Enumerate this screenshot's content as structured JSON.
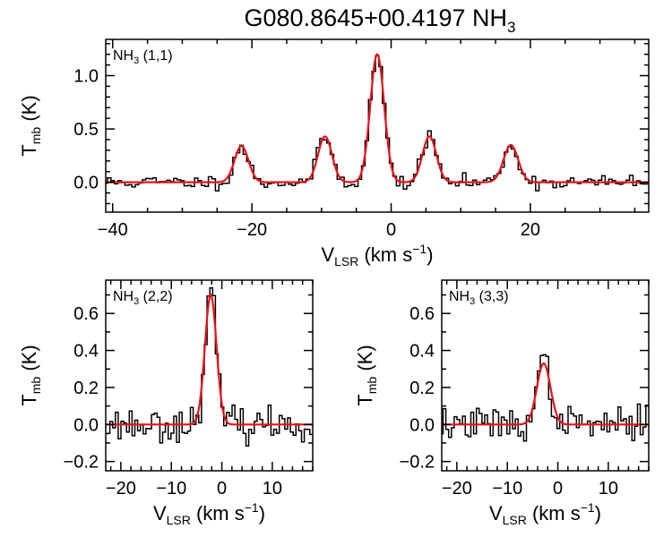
{
  "figure": {
    "title_main": "G080.8645+00.4197 NH",
    "title_sub": "3",
    "fit_color": "#e8121b",
    "obs_color": "#000000"
  },
  "chart_data": [
    {
      "type": "line",
      "panel_label_main": "NH",
      "panel_label_sub": "3",
      "panel_label_rest": " (1,1)",
      "xlabel_main": "V",
      "xlabel_sub": "LSR",
      "xlabel_rest": " (km s",
      "xlabel_sup": "−1",
      "xlabel_close": ")",
      "ylabel_main": "T",
      "ylabel_sub": "mb",
      "ylabel_rest": " (K)",
      "xlim": [
        -41,
        37
      ],
      "ylim": [
        -0.28,
        1.34
      ],
      "xticks": [
        -40,
        -20,
        0,
        20
      ],
      "xtick_labels": [
        "−40",
        "−20",
        "0",
        "20"
      ],
      "yticks": [
        0.0,
        0.5,
        1.0
      ],
      "ytick_labels": [
        "0.0",
        "0.5",
        "1.0"
      ],
      "noise": 0.025,
      "series": [
        {
          "model": "gaussians",
          "components": [
            {
              "center": -21.5,
              "amplitude": 0.34,
              "sigma": 1.0
            },
            {
              "center": -9.5,
              "amplitude": 0.43,
              "sigma": 1.0
            },
            {
              "center": -2.0,
              "amplitude": 1.2,
              "sigma": 1.0
            },
            {
              "center": 5.5,
              "amplitude": 0.43,
              "sigma": 1.0
            },
            {
              "center": 17.2,
              "amplitude": 0.35,
              "sigma": 1.05
            }
          ]
        }
      ]
    },
    {
      "type": "line",
      "panel_label_main": "NH",
      "panel_label_sub": "3",
      "panel_label_rest": " (2,2)",
      "xlabel_main": "V",
      "xlabel_sub": "LSR",
      "xlabel_rest": " (km s",
      "xlabel_sup": "−1",
      "xlabel_close": ")",
      "ylabel_main": "T",
      "ylabel_sub": "mb",
      "ylabel_rest": " (K)",
      "xlim": [
        -23,
        18
      ],
      "ylim": [
        -0.25,
        0.78
      ],
      "xticks": [
        -20,
        -10,
        0,
        10
      ],
      "xtick_labels": [
        "−20",
        "−10",
        "0",
        "10"
      ],
      "yticks": [
        -0.2,
        0.0,
        0.2,
        0.4,
        0.6
      ],
      "ytick_labels": [
        "−0.2",
        "0.0",
        "0.2",
        "0.4",
        "0.6"
      ],
      "noise": 0.035,
      "series": [
        {
          "model": "gaussians",
          "components": [
            {
              "center": -2.2,
              "amplitude": 0.7,
              "sigma": 1.15
            }
          ]
        }
      ]
    },
    {
      "type": "line",
      "panel_label_main": "NH",
      "panel_label_sub": "3",
      "panel_label_rest": " (3,3)",
      "xlabel_main": "V",
      "xlabel_sub": "LSR",
      "xlabel_rest": " (km s",
      "xlabel_sup": "−1",
      "xlabel_close": ")",
      "ylabel_main": "T",
      "ylabel_sub": "mb",
      "ylabel_rest": " (K)",
      "xlim": [
        -23,
        18
      ],
      "ylim": [
        -0.25,
        0.78
      ],
      "xticks": [
        -20,
        -10,
        0,
        10
      ],
      "xtick_labels": [
        "−20",
        "−10",
        "0",
        "10"
      ],
      "yticks": [
        -0.2,
        0.0,
        0.2,
        0.4,
        0.6
      ],
      "ytick_labels": [
        "−0.2",
        "0.0",
        "0.2",
        "0.4",
        "0.6"
      ],
      "noise": 0.035,
      "series": [
        {
          "model": "gaussians",
          "components": [
            {
              "center": -2.8,
              "amplitude": 0.33,
              "sigma": 1.35
            }
          ]
        }
      ]
    }
  ]
}
